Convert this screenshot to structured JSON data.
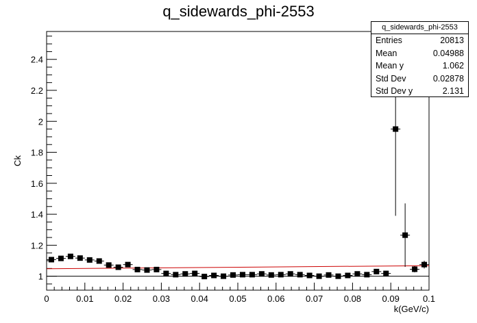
{
  "chart_data": {
    "type": "scatter",
    "title": "q_sidewards_phi-2553",
    "xlabel": "k(GeV/c)",
    "ylabel": "Ck",
    "xlim": [
      0,
      0.1
    ],
    "ylim": [
      0.91,
      2.58
    ],
    "x_ticks": [
      "0",
      "0.01",
      "0.02",
      "0.03",
      "0.04",
      "0.05",
      "0.06",
      "0.07",
      "0.08",
      "0.09",
      "0.1"
    ],
    "y_ticks": [
      "1",
      "1.2",
      "1.4",
      "1.6",
      "1.8",
      "2",
      "2.2",
      "2.4"
    ],
    "grid": false,
    "marker_color": "#000000",
    "fit_color": "#cc0000",
    "reference_line_y": 1.0,
    "points": [
      {
        "x": 0.00125,
        "y": 1.107,
        "err": 0.008
      },
      {
        "x": 0.00375,
        "y": 1.115,
        "err": 0.008
      },
      {
        "x": 0.00625,
        "y": 1.128,
        "err": 0.008
      },
      {
        "x": 0.00875,
        "y": 1.117,
        "err": 0.008
      },
      {
        "x": 0.01125,
        "y": 1.105,
        "err": 0.008
      },
      {
        "x": 0.01375,
        "y": 1.098,
        "err": 0.008
      },
      {
        "x": 0.01625,
        "y": 1.072,
        "err": 0.008
      },
      {
        "x": 0.01875,
        "y": 1.058,
        "err": 0.008
      },
      {
        "x": 0.02125,
        "y": 1.075,
        "err": 0.008
      },
      {
        "x": 0.02375,
        "y": 1.043,
        "err": 0.008
      },
      {
        "x": 0.02625,
        "y": 1.04,
        "err": 0.008
      },
      {
        "x": 0.02875,
        "y": 1.043,
        "err": 0.008
      },
      {
        "x": 0.03125,
        "y": 1.018,
        "err": 0.008
      },
      {
        "x": 0.03375,
        "y": 1.01,
        "err": 0.008
      },
      {
        "x": 0.03625,
        "y": 1.015,
        "err": 0.008
      },
      {
        "x": 0.03875,
        "y": 1.018,
        "err": 0.008
      },
      {
        "x": 0.04125,
        "y": 0.998,
        "err": 0.008
      },
      {
        "x": 0.04375,
        "y": 1.005,
        "err": 0.008
      },
      {
        "x": 0.04625,
        "y": 1.0,
        "err": 0.008
      },
      {
        "x": 0.04875,
        "y": 1.008,
        "err": 0.008
      },
      {
        "x": 0.05125,
        "y": 1.01,
        "err": 0.008
      },
      {
        "x": 0.05375,
        "y": 1.01,
        "err": 0.008
      },
      {
        "x": 0.05625,
        "y": 1.015,
        "err": 0.008
      },
      {
        "x": 0.05875,
        "y": 1.008,
        "err": 0.008
      },
      {
        "x": 0.06125,
        "y": 1.01,
        "err": 0.008
      },
      {
        "x": 0.06375,
        "y": 1.015,
        "err": 0.008
      },
      {
        "x": 0.06625,
        "y": 1.01,
        "err": 0.008
      },
      {
        "x": 0.06875,
        "y": 1.005,
        "err": 0.008
      },
      {
        "x": 0.07125,
        "y": 1.0,
        "err": 0.008
      },
      {
        "x": 0.07375,
        "y": 1.008,
        "err": 0.008
      },
      {
        "x": 0.07625,
        "y": 1.0,
        "err": 0.008
      },
      {
        "x": 0.07875,
        "y": 1.005,
        "err": 0.008
      },
      {
        "x": 0.08125,
        "y": 1.015,
        "err": 0.008
      },
      {
        "x": 0.08375,
        "y": 1.01,
        "err": 0.008
      },
      {
        "x": 0.08625,
        "y": 1.03,
        "err": 0.01
      },
      {
        "x": 0.08875,
        "y": 1.018,
        "err": 0.01
      },
      {
        "x": 0.09125,
        "y": 1.95,
        "err": 0.56
      },
      {
        "x": 0.09375,
        "y": 1.265,
        "err": 0.205
      },
      {
        "x": 0.09625,
        "y": 1.045,
        "err": 0.02
      },
      {
        "x": 0.09875,
        "y": 1.075,
        "err": 0.025
      }
    ],
    "fit_line": {
      "x": [
        0,
        0.1
      ],
      "y": [
        1.048,
        1.068
      ]
    }
  },
  "stats": {
    "title": "q_sidewards_phi-2553",
    "rows": [
      {
        "label": "Entries",
        "value": "20813"
      },
      {
        "label": "Mean",
        "value": "0.04988"
      },
      {
        "label": "Mean y",
        "value": "1.062"
      },
      {
        "label": "Std Dev",
        "value": "0.02878"
      },
      {
        "label": "Std Dev y",
        "value": "2.131"
      }
    ]
  }
}
